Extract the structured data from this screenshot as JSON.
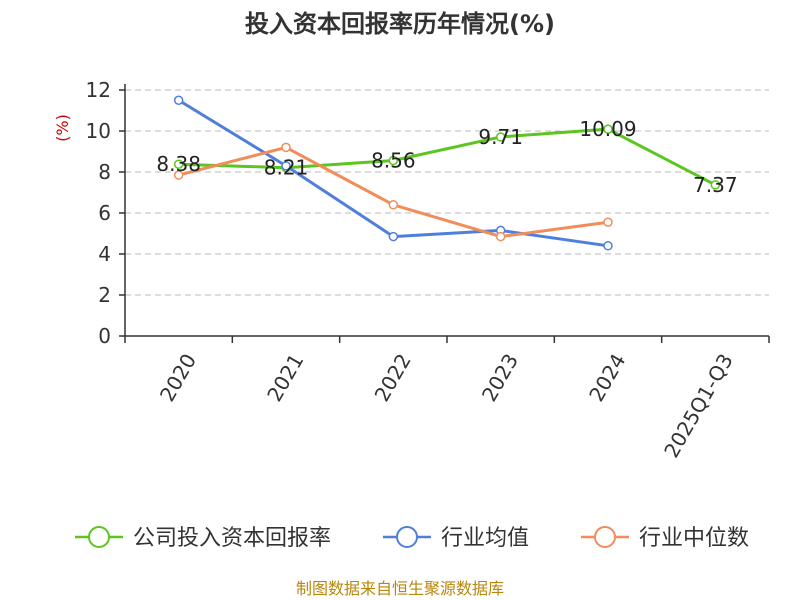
{
  "chart_data": {
    "type": "line",
    "title": "投入资本回报率历年情况(%)",
    "ylabel": "(%)",
    "xlabel": "",
    "categories": [
      "2020",
      "2021",
      "2022",
      "2023",
      "2024",
      "2025Q1-Q3"
    ],
    "ylim": [
      0,
      12
    ],
    "yticks": [
      0,
      2,
      4,
      6,
      8,
      10,
      12
    ],
    "grid": true,
    "legend_position": "bottom",
    "series": [
      {
        "name": "公司投入资本回报率",
        "color": "#5cc520",
        "values": [
          8.38,
          8.21,
          8.56,
          9.71,
          10.09,
          7.37
        ],
        "labels": [
          "8.38",
          "8.21",
          "8.56",
          "9.71",
          "10.09",
          "7.37"
        ]
      },
      {
        "name": "行业均值",
        "color": "#4f7fdc",
        "values": [
          11.5,
          8.3,
          4.85,
          5.15,
          4.4,
          null
        ]
      },
      {
        "name": "行业中位数",
        "color": "#f28c5a",
        "values": [
          7.85,
          9.2,
          6.4,
          4.85,
          5.55,
          null
        ]
      }
    ]
  },
  "source": "制图数据来自恒生聚源数据库"
}
